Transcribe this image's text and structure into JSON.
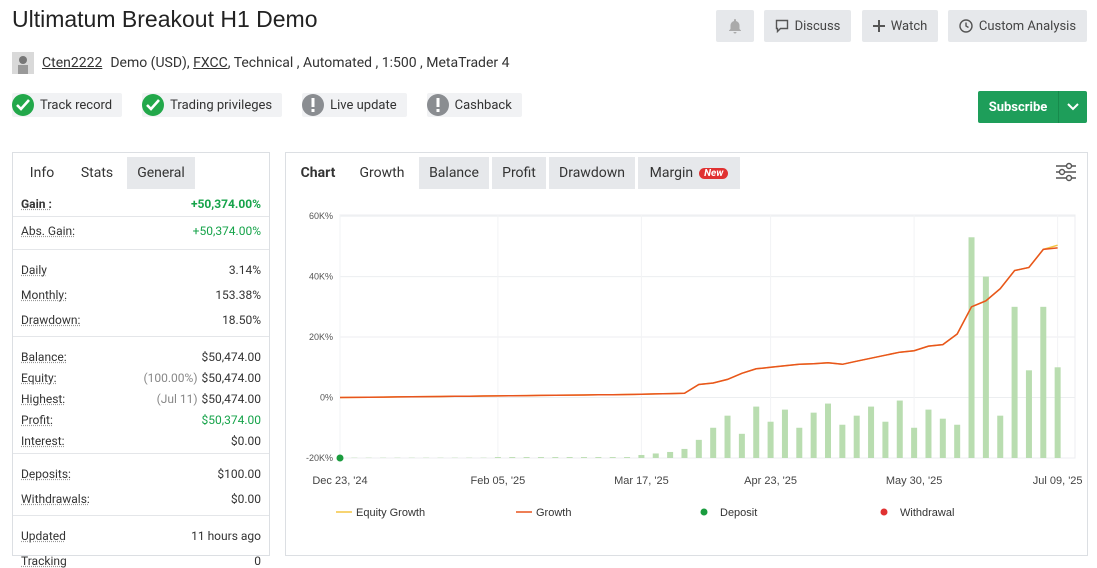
{
  "header": {
    "title": "Ultimatum Breakout H1 Demo",
    "buttons": [
      "Discuss",
      "Watch",
      "Custom Analysis"
    ],
    "owner": "Cten2222",
    "account_type": "Demo (USD),",
    "broker": "FXCC",
    "details": ", Technical , Automated , 1:500 , MetaTrader 4",
    "badges": [
      {
        "label": "Track record",
        "icon": "check"
      },
      {
        "label": "Trading privileges",
        "icon": "check"
      },
      {
        "label": "Live update",
        "icon": "warning"
      },
      {
        "label": "Cashback",
        "icon": "warning"
      }
    ],
    "subscribe": "Subscribe"
  },
  "info": {
    "tabs": [
      "Info",
      "Stats",
      "General"
    ],
    "active_tab": 1,
    "groups": [
      [
        {
          "label": "Gain :",
          "value": "+50,374.00%",
          "tone": "gain"
        },
        {
          "label": "Abs. Gain:",
          "value": "+50,374.00%",
          "tone": "positive"
        }
      ],
      [
        {
          "label": "Daily",
          "value": "3.14%"
        },
        {
          "label": "Monthly:",
          "value": "153.38%"
        },
        {
          "label": "Drawdown:",
          "value": "18.50%"
        }
      ],
      [
        {
          "label": "Balance:",
          "value": "$50,474.00"
        },
        {
          "label": "Equity:",
          "note": "(100.00%)",
          "value": "$50,474.00"
        },
        {
          "label": "Highest:",
          "note": "(Jul 11)",
          "value": "$50,474.00"
        },
        {
          "label": "Profit:",
          "value": "$50,374.00",
          "tone": "positive"
        },
        {
          "label": "Interest:",
          "value": "$0.00"
        }
      ],
      [
        {
          "label": "Deposits:",
          "value": "$100.00"
        },
        {
          "label": "Withdrawals:",
          "value": "$0.00"
        }
      ],
      [
        {
          "label": "Updated",
          "value": "11 hours ago"
        },
        {
          "label": "Tracking",
          "value": "0"
        }
      ]
    ]
  },
  "chart_tabs": {
    "heading": "Chart",
    "tabs": [
      "Growth",
      "Balance",
      "Profit",
      "Drawdown",
      "Margin"
    ],
    "active_tab": 0,
    "new_badge": "New"
  },
  "chart_data": {
    "type": "line",
    "categories": [
      "Dec 23, '24",
      null,
      null,
      null,
      null,
      null,
      null,
      null,
      null,
      null,
      null,
      "Feb 05, '25",
      null,
      null,
      null,
      null,
      null,
      null,
      null,
      null,
      null,
      "Mar 17, '25",
      null,
      null,
      null,
      null,
      null,
      null,
      null,
      null,
      "Apr 23, '25",
      null,
      null,
      null,
      null,
      null,
      null,
      null,
      null,
      null,
      "May 30, '25",
      null,
      null,
      null,
      null,
      null,
      null,
      null,
      null,
      null,
      "Jul 09, '25"
    ],
    "ylim": [
      -20000,
      65000
    ],
    "yticks": [
      {
        "value": -20000,
        "label": "-20K%"
      },
      {
        "value": 0,
        "label": "0%"
      },
      {
        "value": 20000,
        "label": "20K%"
      },
      {
        "value": 40000,
        "label": "40K%"
      },
      {
        "value": 60000,
        "label": "60K%"
      }
    ],
    "grid": true,
    "series": [
      {
        "type": "bar",
        "color": "#b9ddb0",
        "values": [
          -19900,
          -19900,
          -19900,
          -19900,
          -19900,
          -19900,
          -19900,
          -19900,
          -19900,
          -19900,
          -19900,
          -19700,
          -19700,
          -19700,
          -19700,
          -19700,
          -19700,
          -19700,
          -19700,
          -19700,
          -19700,
          -19000,
          -18500,
          -18000,
          -17000,
          -14000,
          -10000,
          -6000,
          -12000,
          -3000,
          -8000,
          -4000,
          -10000,
          -5000,
          -2000,
          -9000,
          -6000,
          -3000,
          -8000,
          -1000,
          -10000,
          -4000,
          -7000,
          -9000,
          53000,
          40000,
          -6000,
          30000,
          9000,
          30000,
          10000
        ]
      },
      {
        "name": "Equity Growth",
        "type": "line",
        "color": "#f4c542",
        "values": [
          0,
          50,
          100,
          150,
          200,
          250,
          300,
          350,
          400,
          450,
          500,
          550,
          600,
          650,
          700,
          750,
          800,
          850,
          900,
          950,
          1000,
          1100,
          1200,
          1300,
          1400,
          4300,
          4800,
          6000,
          8000,
          9500,
          10000,
          10500,
          11000,
          11200,
          11500,
          11000,
          12000,
          13000,
          14000,
          15000,
          15500,
          17000,
          17500,
          21000,
          30000,
          32000,
          36000,
          42000,
          43000,
          49000,
          50374
        ]
      },
      {
        "name": "Growth",
        "type": "line",
        "color": "#e8541e",
        "values": [
          0,
          50,
          100,
          150,
          200,
          250,
          300,
          350,
          400,
          450,
          500,
          550,
          600,
          650,
          700,
          750,
          800,
          850,
          900,
          950,
          1000,
          1100,
          1200,
          1300,
          1400,
          4300,
          4800,
          6000,
          8000,
          9500,
          10000,
          10500,
          11000,
          11200,
          11500,
          11000,
          12000,
          13000,
          14000,
          15000,
          15500,
          17000,
          17500,
          21000,
          30000,
          32000,
          36000,
          42000,
          43000,
          49000,
          49500
        ]
      },
      {
        "name": "Deposit",
        "type": "scatter",
        "color": "#1a9c3e",
        "values": [
          -20000,
          null,
          null,
          null,
          null,
          null,
          null,
          null,
          null,
          null,
          null,
          null,
          null,
          null,
          null,
          null,
          null,
          null,
          null,
          null,
          null,
          null,
          null,
          null,
          null,
          null,
          null,
          null,
          null,
          null,
          null,
          null,
          null,
          null,
          null,
          null,
          null,
          null,
          null,
          null,
          null,
          null,
          null,
          null,
          null,
          null,
          null,
          null,
          null,
          null,
          null
        ]
      },
      {
        "name": "Withdrawal",
        "type": "scatter",
        "color": "#e03131",
        "values": [
          null,
          null,
          null,
          null,
          null,
          null,
          null,
          null,
          null,
          null,
          null,
          null,
          null,
          null,
          null,
          null,
          null,
          null,
          null,
          null,
          null,
          null,
          null,
          null,
          null,
          null,
          null,
          null,
          null,
          null,
          null,
          null,
          null,
          null,
          null,
          null,
          null,
          null,
          null,
          null,
          null,
          null,
          null,
          null,
          null,
          null,
          null,
          null,
          null,
          null,
          null
        ]
      }
    ]
  }
}
